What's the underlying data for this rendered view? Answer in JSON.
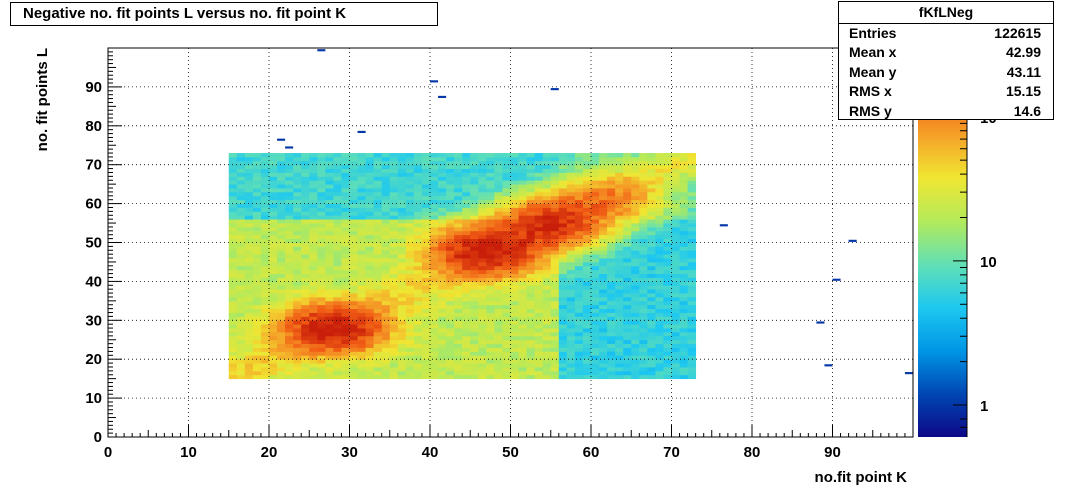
{
  "title": "Negative no. fit points L versus no. fit point K",
  "stats": {
    "name": "fKfLNeg",
    "rows": [
      {
        "label": "Entries",
        "value": "122615"
      },
      {
        "label": "Mean x",
        "value": "42.99"
      },
      {
        "label": "Mean y",
        "value": "43.11"
      },
      {
        "label": "RMS x",
        "value": "15.15"
      },
      {
        "label": "RMS y",
        "value": "14.6"
      }
    ]
  },
  "chart_data": {
    "type": "heatmap",
    "title": "Negative no. fit points L versus no. fit point K",
    "xlabel": "no.fit point K",
    "ylabel": "no. fit points  L",
    "xlim": [
      0,
      100
    ],
    "ylim": [
      0,
      100
    ],
    "x_ticks": [
      0,
      10,
      20,
      30,
      40,
      50,
      60,
      70,
      80,
      90
    ],
    "y_ticks": [
      0,
      10,
      20,
      30,
      40,
      50,
      60,
      70,
      80,
      90
    ],
    "grid": true,
    "z_scale": "log",
    "z_range": [
      0.6,
      300
    ],
    "z_ticks": [
      {
        "value": 1,
        "label": "1"
      },
      {
        "value": 10,
        "label": "10"
      },
      {
        "value": 100,
        "label": "10",
        "sup": "2"
      }
    ],
    "colormap": [
      "#0d0887",
      "#0047b3",
      "#0096e6",
      "#1ec8f0",
      "#62e0b4",
      "#b4ea5a",
      "#f0e632",
      "#f5a028",
      "#f05a14",
      "#c81e0a"
    ],
    "populated_region": {
      "x": [
        15,
        73
      ],
      "y": [
        15,
        73
      ]
    },
    "hot_spots": [
      {
        "x": 28,
        "y": 28,
        "count": 280
      },
      {
        "x": 47,
        "y": 48,
        "count": 300
      },
      {
        "x": 55,
        "y": 55,
        "count": 220
      },
      {
        "x": 62,
        "y": 61,
        "count": 80
      }
    ],
    "isolated_bins": [
      {
        "x": 26,
        "y": 99,
        "count": 1
      },
      {
        "x": 40,
        "y": 91,
        "count": 1
      },
      {
        "x": 41,
        "y": 87,
        "count": 1
      },
      {
        "x": 55,
        "y": 89,
        "count": 1
      },
      {
        "x": 31,
        "y": 78,
        "count": 1
      },
      {
        "x": 21,
        "y": 76,
        "count": 1
      },
      {
        "x": 22,
        "y": 74,
        "count": 1
      },
      {
        "x": 76,
        "y": 54,
        "count": 1
      },
      {
        "x": 92,
        "y": 50,
        "count": 1
      },
      {
        "x": 90,
        "y": 40,
        "count": 1
      },
      {
        "x": 88,
        "y": 29,
        "count": 1
      },
      {
        "x": 89,
        "y": 18,
        "count": 1
      },
      {
        "x": 99,
        "y": 16,
        "count": 1
      }
    ]
  }
}
